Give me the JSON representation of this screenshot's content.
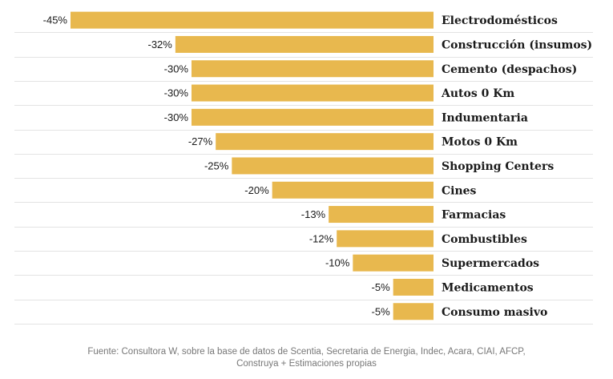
{
  "chart_data": {
    "type": "bar",
    "orientation": "horizontal",
    "categories": [
      "Electrodomésticos",
      "Construcción (insumos)",
      "Cemento (despachos)",
      "Autos 0 Km",
      "Indumentaria",
      "Motos 0 Km",
      "Shopping Centers",
      "Cines",
      "Farmacias",
      "Combustibles",
      "Supermercados",
      "Medicamentos",
      "Consumo masivo"
    ],
    "values": [
      -45,
      -32,
      -30,
      -30,
      -30,
      -27,
      -25,
      -20,
      -13,
      -12,
      -10,
      -5,
      -5
    ],
    "value_labels": [
      "-45%",
      "-32%",
      "-30%",
      "-30%",
      "-30%",
      "-27%",
      "-25%",
      "-20%",
      "-13%",
      "-12%",
      "-10%",
      "-5%",
      "-5%"
    ],
    "xlim": [
      -45,
      0
    ],
    "grid": true,
    "bar_color": "#e8b84e",
    "source_lines": [
      "Fuente: Consultora W, sobre la base de datos de Scentia, Secretaria de Energia, Indec, Acara, CIAI, AFCP,",
      "Construya + Estimaciones propias"
    ]
  }
}
